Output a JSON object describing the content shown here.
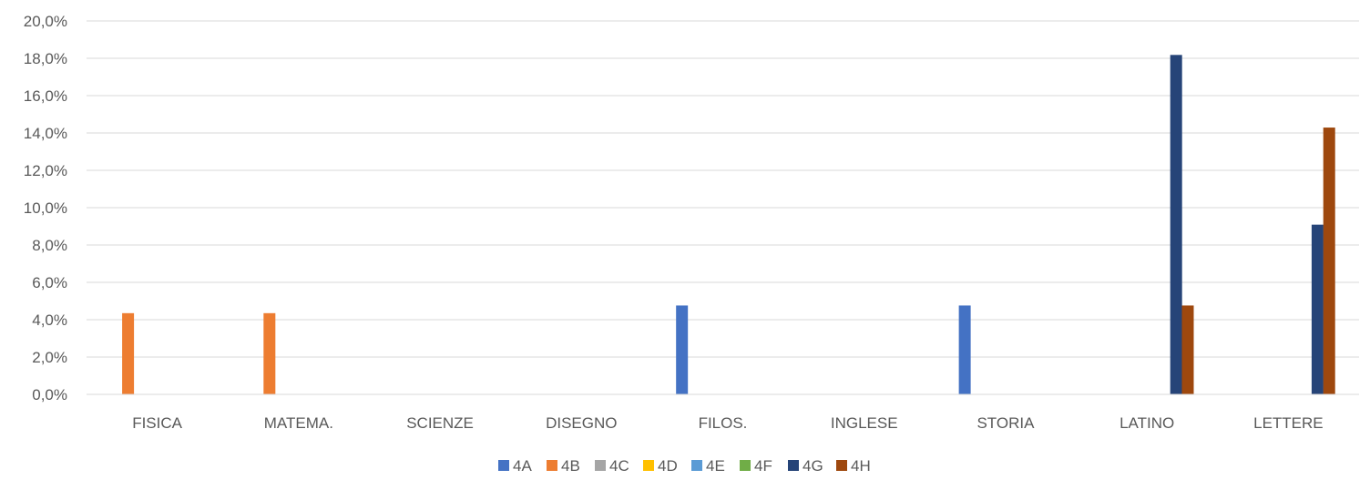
{
  "chart_data": {
    "type": "bar",
    "categories": [
      "FISICA",
      "MATEMA.",
      "SCIENZE",
      "DISEGNO",
      "FILOS.",
      "INGLESE",
      "STORIA",
      "LATINO",
      "LETTERE"
    ],
    "series": [
      {
        "name": "4A",
        "color": "#4472C4",
        "values": [
          0,
          0,
          0,
          0,
          4.76,
          0,
          4.76,
          0,
          0
        ]
      },
      {
        "name": "4B",
        "color": "#ED7D31",
        "values": [
          4.35,
          4.35,
          0,
          0,
          0,
          0,
          0,
          0,
          0
        ]
      },
      {
        "name": "4C",
        "color": "#A5A5A5",
        "values": [
          0,
          0,
          0,
          0,
          0,
          0,
          0,
          0,
          0
        ]
      },
      {
        "name": "4D",
        "color": "#FFC000",
        "values": [
          0,
          0,
          0,
          0,
          0,
          0,
          0,
          0,
          0
        ]
      },
      {
        "name": "4E",
        "color": "#5B9BD5",
        "values": [
          0,
          0,
          0,
          0,
          0,
          0,
          0,
          0,
          0
        ]
      },
      {
        "name": "4F",
        "color": "#70AD47",
        "values": [
          0,
          0,
          0,
          0,
          0,
          0,
          0,
          0,
          0
        ]
      },
      {
        "name": "4G",
        "color": "#264478",
        "values": [
          0,
          0,
          0,
          0,
          0,
          0,
          0,
          18.18,
          9.09
        ]
      },
      {
        "name": "4H",
        "color": "#9E480E",
        "values": [
          0,
          0,
          0,
          0,
          0,
          0,
          0,
          4.76,
          14.29
        ]
      }
    ],
    "ylim": [
      0,
      20
    ],
    "yticks": [
      "0,0%",
      "2,0%",
      "4,0%",
      "6,0%",
      "8,0%",
      "10,0%",
      "12,0%",
      "14,0%",
      "16,0%",
      "18,0%",
      "20,0%"
    ],
    "grid": true,
    "legend_position": "bottom"
  }
}
